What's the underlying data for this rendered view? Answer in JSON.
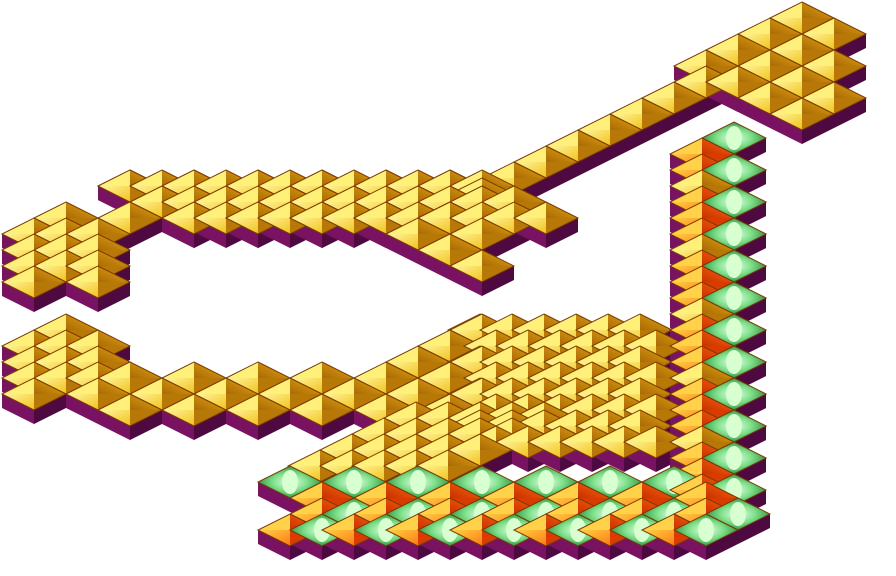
{
  "scene": {
    "name": "isometric-tile-map",
    "colors": {
      "background": "#ffffff",
      "base_side": "#7a1262",
      "base_shadow": "#4e0a40",
      "outline": "#7a3c00",
      "gold_light": "#fff07a",
      "gold_mid": "#f2c21a",
      "gold_dark": "#b87808",
      "orange_light": "#ffd24a",
      "orange_mid": "#ff7a10",
      "orange_dark": "#d83c00",
      "green_light": "#d8ffd0",
      "green_mid": "#5fcf6e",
      "green_dark": "#157a2e"
    },
    "tiles": {
      "gold": "gold-pyramid-tile",
      "orange": "orange-gem-tile",
      "green": "green-gem-tile"
    }
  }
}
